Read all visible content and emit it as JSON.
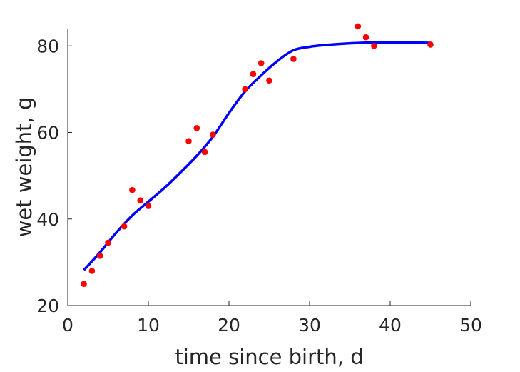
{
  "chart_data": {
    "type": "scatter",
    "xlabel": "time since birth, d",
    "ylabel": "wet weight, g",
    "xlim": [
      0,
      50
    ],
    "ylim": [
      20,
      84
    ],
    "xticks": [
      0,
      10,
      20,
      30,
      40,
      50
    ],
    "yticks": [
      20,
      40,
      60,
      80
    ],
    "grid": false,
    "legend": "none",
    "series": [
      {
        "kind": "points",
        "color": "#ff0000",
        "x": [
          2,
          3,
          4,
          5,
          7,
          8,
          9,
          10,
          15,
          16,
          17,
          18,
          22,
          23,
          24,
          25,
          28,
          36,
          37,
          38,
          45
        ],
        "y": [
          25.0,
          28.0,
          31.5,
          34.5,
          38.3,
          46.7,
          44.3,
          43.0,
          58.0,
          61.0,
          55.5,
          59.5,
          70.0,
          73.5,
          76.0,
          72.0,
          77.0,
          84.5,
          82.0,
          80.0,
          80.3
        ]
      },
      {
        "kind": "line",
        "color": "#0000ff",
        "x": [
          2,
          4,
          6,
          8,
          10,
          12,
          14,
          16,
          18,
          20,
          22,
          24,
          26,
          28,
          30,
          32,
          35,
          38,
          40,
          42,
          45
        ],
        "y": [
          28.2,
          32.3,
          36.8,
          40.8,
          44.0,
          47.2,
          50.8,
          54.6,
          59.0,
          64.5,
          69.5,
          73.2,
          76.5,
          79.0,
          79.8,
          80.2,
          80.6,
          80.8,
          80.8,
          80.8,
          80.7
        ]
      }
    ]
  }
}
